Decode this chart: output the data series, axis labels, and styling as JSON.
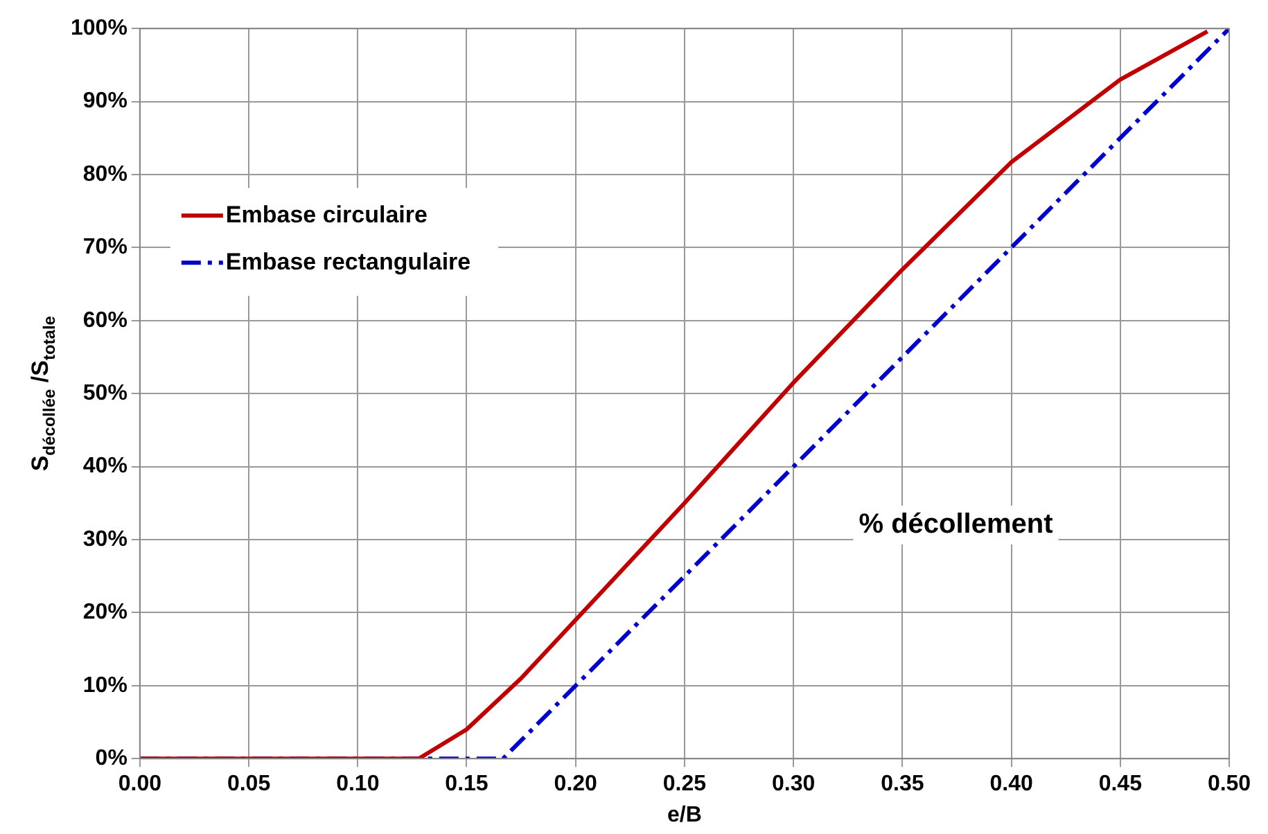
{
  "chart_data": {
    "type": "line",
    "xlabel": "e/B",
    "ylabel": "S$_{décollée}$ /S$_{totale}$",
    "xlim": [
      0,
      0.5
    ],
    "xticks": [
      {
        "value": 0,
        "label": "0.00"
      },
      {
        "value": 0.05,
        "label": "0.05"
      },
      {
        "value": 0.1,
        "label": "0.10"
      },
      {
        "value": 0.15,
        "label": "0.15"
      },
      {
        "value": 0.2,
        "label": "0.20"
      },
      {
        "value": 0.25,
        "label": "0.25"
      },
      {
        "value": 0.3,
        "label": "0.30"
      },
      {
        "value": 0.35,
        "label": "0.35"
      },
      {
        "value": 0.4,
        "label": "0.40"
      },
      {
        "value": 0.45,
        "label": "0.45"
      },
      {
        "value": 0.5,
        "label": "0.50"
      }
    ],
    "ylim": [
      0,
      100
    ],
    "yticks": [
      {
        "value": 0,
        "label": "0%"
      },
      {
        "value": 10,
        "label": "10%"
      },
      {
        "value": 20,
        "label": "20%"
      },
      {
        "value": 30,
        "label": "30%"
      },
      {
        "value": 40,
        "label": "40%"
      },
      {
        "value": 50,
        "label": "50%"
      },
      {
        "value": 60,
        "label": "60%"
      },
      {
        "value": 70,
        "label": "70%"
      },
      {
        "value": 80,
        "label": "80%"
      },
      {
        "value": 90,
        "label": "90%"
      },
      {
        "value": 100,
        "label": "100%"
      }
    ],
    "grid": true,
    "legend": "top left",
    "marker": "none",
    "annotations": [
      "% décollement"
    ],
    "series": [
      {
        "name": "Embase circulaire",
        "color": "#c00000",
        "line_style": "solid",
        "x": [
          0,
          0.128,
          0.15,
          0.175,
          0.2,
          0.25,
          0.3,
          0.35,
          0.4,
          0.45,
          0.49
        ],
        "values": [
          0,
          0,
          4,
          11,
          19,
          35,
          51.5,
          67,
          81.7,
          93,
          99.6
        ]
      },
      {
        "name": "Embase rectangulaire",
        "color": "#0000cc",
        "line_style": "dashed",
        "x": [
          0,
          0.1667,
          0.5
        ],
        "values": [
          0,
          0,
          100
        ]
      }
    ]
  }
}
